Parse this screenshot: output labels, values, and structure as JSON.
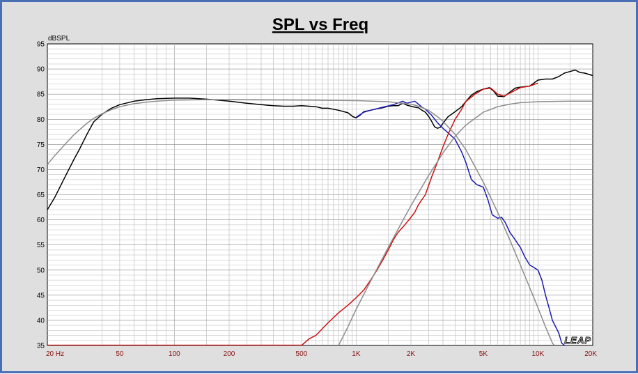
{
  "chart_data": {
    "type": "line",
    "title": "SPL vs Freq",
    "ylabel": "dBSPL",
    "xlabel": "",
    "x_scale": "log",
    "xlim": [
      20,
      20000
    ],
    "ylim": [
      35,
      95
    ],
    "grid": true,
    "x_ticks": [
      {
        "value": 20,
        "label": "20  Hz"
      },
      {
        "value": 50,
        "label": "50"
      },
      {
        "value": 100,
        "label": "100"
      },
      {
        "value": 200,
        "label": "200"
      },
      {
        "value": 500,
        "label": "500"
      },
      {
        "value": 1000,
        "label": "1K"
      },
      {
        "value": 2000,
        "label": "2K"
      },
      {
        "value": 5000,
        "label": "5K"
      },
      {
        "value": 10000,
        "label": "10K"
      },
      {
        "value": 20000,
        "label": "20K"
      }
    ],
    "y_ticks": [
      {
        "value": 95,
        "label": "95"
      },
      {
        "value": 90,
        "label": "90"
      },
      {
        "value": 85,
        "label": "85"
      },
      {
        "value": 80,
        "label": "80"
      },
      {
        "value": 75,
        "label": "75"
      },
      {
        "value": 70,
        "label": "70"
      },
      {
        "value": 65,
        "label": "65"
      },
      {
        "value": 60,
        "label": "60"
      },
      {
        "value": 55,
        "label": "55"
      },
      {
        "value": 50,
        "label": "50"
      },
      {
        "value": 45,
        "label": "45"
      },
      {
        "value": 40,
        "label": "40"
      },
      {
        "value": 35,
        "label": "35"
      }
    ],
    "watermark": "LEAP",
    "series": [
      {
        "color": "#000000",
        "points": [
          [
            20,
            62
          ],
          [
            22,
            64.5
          ],
          [
            25,
            68.5
          ],
          [
            28,
            72
          ],
          [
            30,
            74
          ],
          [
            33,
            77
          ],
          [
            36,
            79.5
          ],
          [
            40,
            81
          ],
          [
            45,
            82.2
          ],
          [
            50,
            82.9
          ],
          [
            60,
            83.6
          ],
          [
            70,
            83.9
          ],
          [
            80,
            84.1
          ],
          [
            100,
            84.2
          ],
          [
            120,
            84.2
          ],
          [
            150,
            84
          ],
          [
            200,
            83.6
          ],
          [
            250,
            83.2
          ],
          [
            300,
            82.9
          ],
          [
            350,
            82.7
          ],
          [
            400,
            82.6
          ],
          [
            450,
            82.6
          ],
          [
            500,
            82.7
          ],
          [
            550,
            82.6
          ],
          [
            600,
            82.5
          ],
          [
            650,
            82.2
          ],
          [
            700,
            82.2
          ],
          [
            800,
            81.8
          ],
          [
            900,
            81.3
          ],
          [
            960,
            80.5
          ],
          [
            1000,
            80.3
          ],
          [
            1050,
            80.8
          ],
          [
            1100,
            81.5
          ],
          [
            1200,
            81.8
          ],
          [
            1300,
            82.1
          ],
          [
            1400,
            82.3
          ],
          [
            1500,
            82.6
          ],
          [
            1600,
            82.7
          ],
          [
            1700,
            82.7
          ],
          [
            1800,
            83.2
          ],
          [
            1900,
            82.8
          ],
          [
            2000,
            82.6
          ],
          [
            2100,
            82.4
          ],
          [
            2200,
            82.3
          ],
          [
            2300,
            81.8
          ],
          [
            2400,
            81.4
          ],
          [
            2500,
            80.6
          ],
          [
            2600,
            79.6
          ],
          [
            2700,
            78.5
          ],
          [
            2800,
            78.2
          ],
          [
            2900,
            78.4
          ],
          [
            3000,
            79.2
          ],
          [
            3200,
            80.5
          ],
          [
            3500,
            81.5
          ],
          [
            3800,
            82.5
          ],
          [
            4000,
            83.5
          ],
          [
            4300,
            84.8
          ],
          [
            4600,
            85.5
          ],
          [
            5000,
            86
          ],
          [
            5400,
            86.3
          ],
          [
            5700,
            85.6
          ],
          [
            6000,
            84.6
          ],
          [
            6500,
            84.5
          ],
          [
            7000,
            85.4
          ],
          [
            7500,
            86.2
          ],
          [
            8000,
            86.4
          ],
          [
            9000,
            86.6
          ],
          [
            10000,
            87.8
          ],
          [
            11000,
            88
          ],
          [
            12000,
            88
          ],
          [
            13000,
            88.5
          ],
          [
            14000,
            89.2
          ],
          [
            15000,
            89.5
          ],
          [
            16000,
            89.8
          ],
          [
            17000,
            89.3
          ],
          [
            18000,
            89.2
          ],
          [
            20000,
            88.7
          ]
        ]
      },
      {
        "color": "#1a1ab4",
        "points": [
          [
            1000,
            80.4
          ],
          [
            1100,
            81.4
          ],
          [
            1200,
            81.8
          ],
          [
            1400,
            82.4
          ],
          [
            1600,
            82.9
          ],
          [
            1800,
            83.6
          ],
          [
            1900,
            83.2
          ],
          [
            2000,
            83.4
          ],
          [
            2100,
            83.6
          ],
          [
            2200,
            83
          ],
          [
            2300,
            82.4
          ],
          [
            2400,
            82
          ],
          [
            2600,
            80.8
          ],
          [
            2800,
            79.3
          ],
          [
            3000,
            78.2
          ],
          [
            3200,
            77.3
          ],
          [
            3500,
            76
          ],
          [
            3800,
            73.5
          ],
          [
            4000,
            71.5
          ],
          [
            4300,
            68
          ],
          [
            4600,
            67
          ],
          [
            5000,
            66.5
          ],
          [
            5300,
            64
          ],
          [
            5600,
            61
          ],
          [
            6000,
            60.3
          ],
          [
            6300,
            60.5
          ],
          [
            6600,
            59.5
          ],
          [
            7000,
            57.5
          ],
          [
            7500,
            56
          ],
          [
            8000,
            54.5
          ],
          [
            8500,
            52.5
          ],
          [
            9000,
            51
          ],
          [
            9500,
            50.5
          ],
          [
            10000,
            50
          ],
          [
            10500,
            48
          ],
          [
            11000,
            45
          ],
          [
            11500,
            42.5
          ],
          [
            12000,
            40
          ],
          [
            13000,
            37.5
          ],
          [
            13500,
            35.5
          ],
          [
            14000,
            35
          ]
        ]
      },
      {
        "color": "#cc1010",
        "points": [
          [
            500,
            35
          ],
          [
            550,
            36.3
          ],
          [
            600,
            37
          ],
          [
            700,
            39.5
          ],
          [
            800,
            41.5
          ],
          [
            900,
            43
          ],
          [
            1000,
            44.5
          ],
          [
            1100,
            46
          ],
          [
            1200,
            48
          ],
          [
            1300,
            50
          ],
          [
            1400,
            52
          ],
          [
            1500,
            54
          ],
          [
            1600,
            56
          ],
          [
            1700,
            57.5
          ],
          [
            1800,
            58.5
          ],
          [
            1900,
            59.5
          ],
          [
            2000,
            60.5
          ],
          [
            2100,
            61.5
          ],
          [
            2200,
            63
          ],
          [
            2400,
            65
          ],
          [
            2600,
            68.5
          ],
          [
            2800,
            71.5
          ],
          [
            3000,
            74.5
          ],
          [
            3200,
            77
          ],
          [
            3500,
            80
          ],
          [
            3800,
            82
          ],
          [
            4000,
            83.5
          ],
          [
            4500,
            85
          ],
          [
            5000,
            86
          ],
          [
            5500,
            86.2
          ],
          [
            6000,
            85
          ],
          [
            6500,
            84.6
          ],
          [
            7000,
            85.2
          ],
          [
            8000,
            86.3
          ],
          [
            9000,
            86.6
          ],
          [
            10000,
            87.2
          ]
        ]
      },
      {
        "color": "#8c8c8c",
        "points": [
          [
            20,
            71
          ],
          [
            22,
            72.8
          ],
          [
            25,
            75
          ],
          [
            28,
            76.9
          ],
          [
            30,
            77.9
          ],
          [
            33,
            79.2
          ],
          [
            36,
            80.2
          ],
          [
            40,
            81.1
          ],
          [
            45,
            81.9
          ],
          [
            50,
            82.5
          ],
          [
            60,
            83.1
          ],
          [
            70,
            83.4
          ],
          [
            80,
            83.6
          ],
          [
            100,
            83.8
          ],
          [
            150,
            83.9
          ],
          [
            200,
            83.9
          ],
          [
            500,
            83.8
          ],
          [
            1000,
            83.7
          ],
          [
            1500,
            83.5
          ],
          [
            2000,
            83
          ],
          [
            2200,
            82.6
          ],
          [
            2500,
            81.8
          ],
          [
            2800,
            80.5
          ],
          [
            3000,
            79.6
          ],
          [
            3500,
            77
          ],
          [
            4000,
            74
          ],
          [
            5000,
            67.5
          ],
          [
            6000,
            61.5
          ],
          [
            7000,
            56
          ],
          [
            8000,
            51
          ],
          [
            9000,
            46.5
          ],
          [
            10000,
            42.5
          ],
          [
            11000,
            38.7
          ],
          [
            12000,
            35.5
          ],
          [
            12300,
            35
          ]
        ]
      },
      {
        "color": "#8c8c8c",
        "points": [
          [
            800,
            35
          ],
          [
            900,
            38.7
          ],
          [
            1000,
            42.2
          ],
          [
            1200,
            47.8
          ],
          [
            1500,
            54.5
          ],
          [
            1800,
            59.8
          ],
          [
            2000,
            62.8
          ],
          [
            2500,
            68.8
          ],
          [
            3000,
            73.3
          ],
          [
            3500,
            76.6
          ],
          [
            4000,
            78.8
          ],
          [
            5000,
            81.4
          ],
          [
            6000,
            82.5
          ],
          [
            7000,
            83
          ],
          [
            8000,
            83.3
          ],
          [
            10000,
            83.5
          ],
          [
            15000,
            83.6
          ],
          [
            20000,
            83.6
          ]
        ]
      }
    ]
  }
}
